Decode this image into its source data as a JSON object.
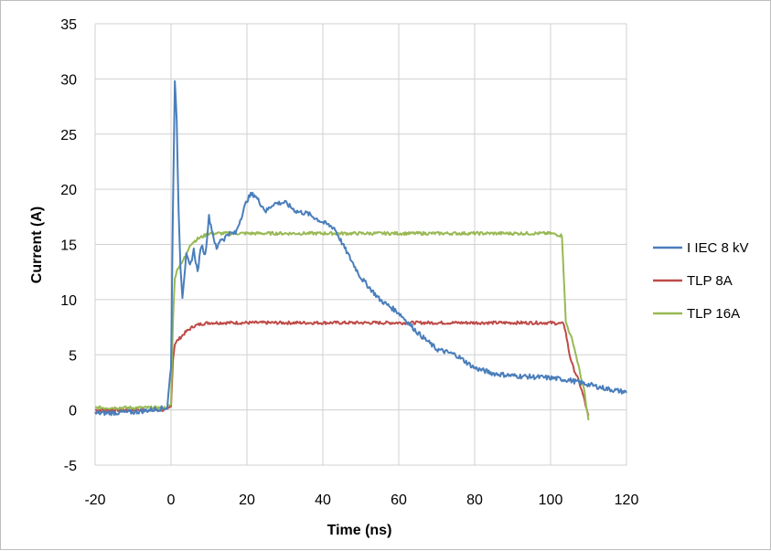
{
  "chart_data": {
    "type": "line",
    "title": "",
    "xlabel": "Time (ns)",
    "ylabel": "Current (A)",
    "xlim": [
      -20,
      120
    ],
    "ylim": [
      -5,
      35
    ],
    "xticks": [
      -20,
      0,
      20,
      40,
      60,
      80,
      100,
      120
    ],
    "yticks": [
      -5,
      0,
      5,
      10,
      15,
      20,
      25,
      30,
      35
    ],
    "grid": true,
    "legend_position": "right",
    "series": [
      {
        "name": "I IEC 8 kV",
        "color": "#4a7ebb",
        "x": [
          -20,
          -10,
          -1,
          0,
          0.5,
          1,
          1.5,
          2,
          2.5,
          3,
          4,
          5,
          6,
          7,
          8,
          9,
          10,
          11,
          12,
          13,
          14,
          15,
          17,
          19,
          20,
          21,
          22,
          23,
          25,
          27,
          30,
          33,
          36,
          40,
          43,
          46,
          50,
          55,
          60,
          65,
          70,
          75,
          80,
          85,
          90,
          95,
          100,
          105,
          110,
          115,
          120
        ],
        "y": [
          -0.3,
          -0.2,
          0.2,
          4.0,
          18.0,
          30.0,
          26.0,
          18.0,
          13.0,
          10.3,
          14.0,
          13.0,
          14.5,
          12.5,
          15.0,
          14.0,
          17.5,
          16.0,
          14.5,
          15.5,
          15.5,
          16.0,
          16.0,
          18.0,
          19.0,
          19.5,
          19.5,
          19.0,
          18.0,
          18.7,
          18.8,
          18.0,
          17.8,
          17.0,
          16.5,
          14.5,
          12.0,
          10.0,
          8.8,
          7.0,
          5.5,
          5.0,
          3.8,
          3.3,
          3.1,
          3.0,
          2.9,
          2.7,
          2.3,
          1.9,
          1.6
        ]
      },
      {
        "name": "TLP 8A",
        "color": "#be4b48",
        "x": [
          -20,
          -10,
          -1,
          0,
          0.5,
          1,
          2,
          4,
          6,
          8,
          10,
          15,
          20,
          40,
          60,
          80,
          100,
          103.5,
          104,
          105,
          106,
          107,
          108,
          109,
          109.5,
          110
        ],
        "y": [
          0.0,
          0.0,
          0.0,
          0.3,
          4.5,
          6.0,
          6.4,
          7.1,
          7.6,
          7.8,
          7.9,
          7.9,
          7.9,
          7.9,
          7.9,
          7.9,
          7.9,
          7.8,
          7.0,
          5.0,
          3.8,
          3.0,
          2.0,
          0.8,
          0.0,
          -0.6
        ]
      },
      {
        "name": "TLP 16A",
        "color": "#98b954",
        "x": [
          -20,
          -10,
          -1,
          0,
          0.5,
          1,
          2,
          3,
          4,
          5,
          7,
          10,
          15,
          20,
          40,
          60,
          80,
          100,
          103,
          103.5,
          104,
          105,
          106,
          107,
          108,
          109,
          109.5,
          110
        ],
        "y": [
          0.2,
          0.2,
          0.2,
          0.5,
          8.0,
          12.0,
          13.0,
          13.5,
          14.0,
          15.0,
          15.5,
          16.0,
          16.0,
          16.0,
          16.0,
          16.0,
          16.0,
          16.0,
          15.8,
          12.0,
          8.0,
          7.0,
          6.0,
          4.5,
          3.0,
          1.5,
          0.0,
          -0.8
        ]
      }
    ]
  }
}
